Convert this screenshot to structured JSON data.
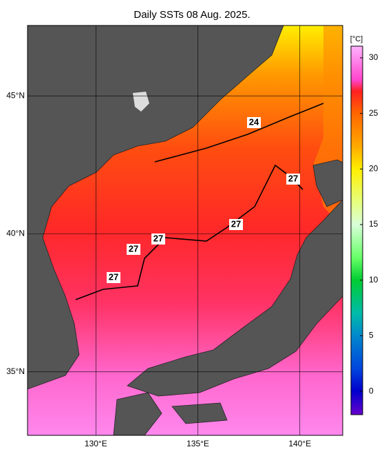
{
  "title": "Daily SSTs 08 Aug. 2025.",
  "map": {
    "lonlim": [
      126.65,
      142.1
    ],
    "latlim": [
      32.7,
      47.55
    ],
    "lon_ticks": [
      {
        "value": 130,
        "label": "130°E"
      },
      {
        "value": 135,
        "label": "135°E"
      },
      {
        "value": 140,
        "label": "140°E"
      }
    ],
    "lat_ticks": [
      {
        "value": 35,
        "label": "35°N"
      },
      {
        "value": 40,
        "label": "40°N"
      },
      {
        "value": 45,
        "label": "45°N"
      }
    ]
  },
  "colorbar": {
    "unit": "[°C]",
    "lim": [
      -2.1,
      31.05
    ],
    "ticks": [
      0,
      5,
      10,
      15,
      20,
      25,
      30
    ]
  },
  "contour_labels": [
    24,
    27,
    27,
    27,
    27,
    27
  ]
}
